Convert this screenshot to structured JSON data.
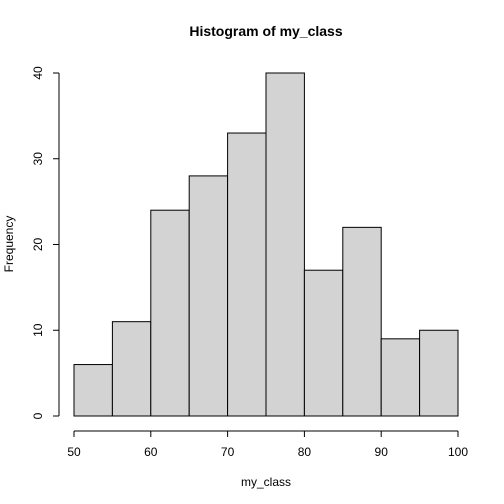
{
  "chart_data": {
    "type": "bar",
    "subtype": "histogram",
    "title": "Histogram of my_class",
    "xlabel": "my_class",
    "ylabel": "Frequency",
    "bins": [
      {
        "from": 50,
        "to": 55,
        "count": 6
      },
      {
        "from": 55,
        "to": 60,
        "count": 11
      },
      {
        "from": 60,
        "to": 65,
        "count": 24
      },
      {
        "from": 65,
        "to": 70,
        "count": 28
      },
      {
        "from": 70,
        "to": 75,
        "count": 33
      },
      {
        "from": 75,
        "to": 80,
        "count": 40
      },
      {
        "from": 80,
        "to": 85,
        "count": 17
      },
      {
        "from": 85,
        "to": 90,
        "count": 22
      },
      {
        "from": 90,
        "to": 95,
        "count": 9
      },
      {
        "from": 95,
        "to": 100,
        "count": 10
      }
    ],
    "xlim": [
      50,
      100
    ],
    "ylim": [
      0,
      40
    ],
    "x_ticks": [
      50,
      60,
      70,
      80,
      90,
      100
    ],
    "y_ticks": [
      0,
      10,
      20,
      30,
      40
    ],
    "grid": false,
    "legend": "none",
    "colors": {
      "bar_fill": "#d3d3d3",
      "bar_stroke": "#000000"
    }
  }
}
